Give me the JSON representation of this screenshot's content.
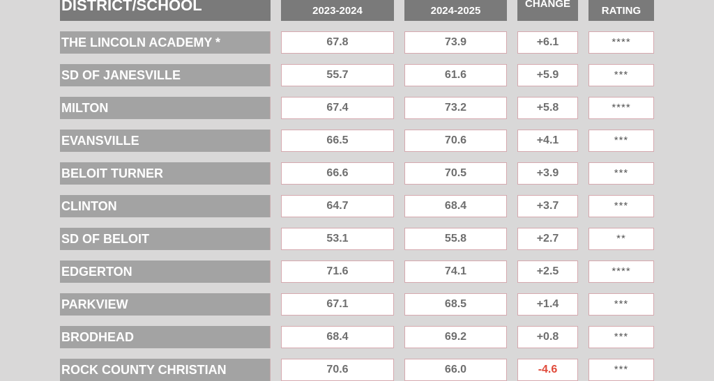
{
  "header": {
    "district_school": "DISTRICT/SCHOOL",
    "year_a": "2023-2024",
    "year_b": "2024-2025",
    "change": "CHANGE",
    "rating": "RATING"
  },
  "rows": [
    {
      "name": "THE LINCOLN ACADEMY *",
      "score_2023_2024": "67.8",
      "score_2024_2025": "73.9",
      "change": "+6.1",
      "rating": "****"
    },
    {
      "name": "SD OF JANESVILLE",
      "score_2023_2024": "55.7",
      "score_2024_2025": "61.6",
      "change": "+5.9",
      "rating": "***"
    },
    {
      "name": "MILTON",
      "score_2023_2024": "67.4",
      "score_2024_2025": "73.2",
      "change": "+5.8",
      "rating": "****"
    },
    {
      "name": "EVANSVILLE",
      "score_2023_2024": "66.5",
      "score_2024_2025": "70.6",
      "change": "+4.1",
      "rating": "***"
    },
    {
      "name": "BELOIT TURNER",
      "score_2023_2024": "66.6",
      "score_2024_2025": "70.5",
      "change": "+3.9",
      "rating": "***"
    },
    {
      "name": "CLINTON",
      "score_2023_2024": "64.7",
      "score_2024_2025": "68.4",
      "change": "+3.7",
      "rating": "***"
    },
    {
      "name": "SD OF BELOIT",
      "score_2023_2024": "53.1",
      "score_2024_2025": "55.8",
      "change": "+2.7",
      "rating": "**"
    },
    {
      "name": "EDGERTON",
      "score_2023_2024": "71.6",
      "score_2024_2025": "74.1",
      "change": "+2.5",
      "rating": "****"
    },
    {
      "name": "PARKVIEW",
      "score_2023_2024": "67.1",
      "score_2024_2025": "68.5",
      "change": "+1.4",
      "rating": "***"
    },
    {
      "name": "BRODHEAD",
      "score_2023_2024": "68.4",
      "score_2024_2025": "69.2",
      "change": "+0.8",
      "rating": "***"
    },
    {
      "name": "ROCK COUNTY CHRISTIAN",
      "score_2023_2024": "70.6",
      "score_2024_2025": "66.0",
      "change": "-4.6",
      "rating": "***"
    }
  ],
  "colors": {
    "background": "#d9d8d8",
    "header_fill": "#7a7a7a",
    "name_fill": "#a3a3a3",
    "cell_border": "#d5a8ae",
    "negative_change": "#e04a3a"
  }
}
